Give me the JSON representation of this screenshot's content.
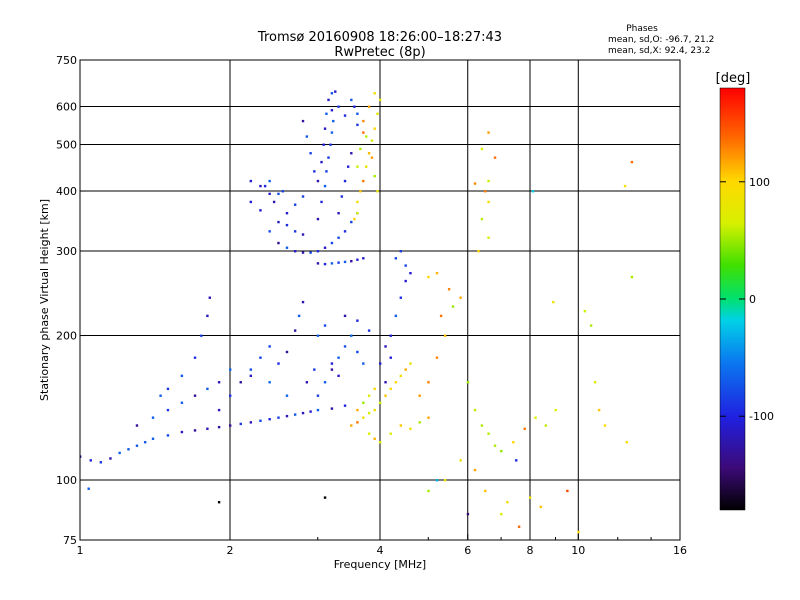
{
  "chart_data": {
    "type": "scatter",
    "title": "Tromsø 20160908 18:26:00–18:27:43",
    "subtitle": "RwPretec (8p)",
    "xlabel": "Frequency [MHz]",
    "ylabel": "Stationary phase Virtual Height [km]",
    "x_scale": "log",
    "y_scale": "log",
    "xlim": [
      1,
      16
    ],
    "ylim": [
      75,
      750
    ],
    "x_ticks": [
      1,
      2,
      4,
      6,
      8,
      10,
      16
    ],
    "x_tick_labels": [
      "1",
      "2",
      "4",
      "6",
      "8",
      "10",
      "16"
    ],
    "y_ticks": [
      75,
      100,
      200,
      300,
      400,
      500,
      600,
      750
    ],
    "y_tick_labels": [
      "75",
      "100",
      "200",
      "300",
      "400",
      "500",
      "600",
      "750"
    ],
    "x_gridlines": [
      2,
      4,
      6,
      8,
      10
    ],
    "y_gridlines": [
      100,
      200,
      300,
      400,
      500,
      600
    ],
    "grid": true,
    "colorbar": {
      "label": "[deg]",
      "range": [
        -180,
        180
      ],
      "tick_values": [
        100,
        0,
        -100
      ],
      "tick_labels": [
        "100",
        "0",
        "-100"
      ]
    },
    "phase_stats": {
      "title": "Phases",
      "line_o": "mean, sd,O: -96.7, 21.2",
      "line_x": "mean, sd,X:  92.4, 23.2"
    },
    "series": [
      {
        "trace": "F-region O-mode echoes (violet/blue)",
        "phase_mean": -96.7,
        "points": [
          [
            2.5,
            312
          ],
          [
            2.6,
            305
          ],
          [
            2.7,
            300
          ],
          [
            2.8,
            298
          ],
          [
            2.9,
            298
          ],
          [
            3.0,
            300
          ],
          [
            3.1,
            305
          ],
          [
            3.2,
            312
          ],
          [
            3.3,
            320
          ],
          [
            3.4,
            330
          ],
          [
            3.5,
            345
          ],
          [
            3.6,
            360
          ],
          [
            2.4,
            330
          ],
          [
            2.5,
            345
          ],
          [
            2.6,
            360
          ],
          [
            2.7,
            375
          ],
          [
            2.8,
            390
          ],
          [
            2.45,
            380
          ],
          [
            2.55,
            400
          ],
          [
            2.35,
            410
          ],
          [
            2.4,
            420
          ],
          [
            2.5,
            395
          ],
          [
            3.0,
            350
          ],
          [
            3.05,
            380
          ],
          [
            3.1,
            410
          ],
          [
            3.12,
            440
          ],
          [
            3.15,
            470
          ],
          [
            3.18,
            500
          ],
          [
            3.2,
            530
          ],
          [
            3.22,
            560
          ],
          [
            3.2,
            590
          ],
          [
            3.15,
            620
          ],
          [
            3.2,
            640
          ],
          [
            3.25,
            645
          ],
          [
            3.0,
            420
          ],
          [
            3.05,
            460
          ],
          [
            3.08,
            500
          ],
          [
            3.1,
            540
          ],
          [
            3.12,
            580
          ],
          [
            2.95,
            440
          ],
          [
            2.9,
            480
          ],
          [
            2.85,
            520
          ],
          [
            2.8,
            560
          ],
          [
            3.3,
            360
          ],
          [
            3.35,
            390
          ],
          [
            3.4,
            420
          ],
          [
            3.45,
            450
          ],
          [
            3.5,
            480
          ],
          [
            3.4,
            285
          ],
          [
            3.5,
            286
          ],
          [
            3.6,
            288
          ],
          [
            3.7,
            290
          ],
          [
            3.3,
            284
          ],
          [
            3.2,
            283
          ],
          [
            3.1,
            282
          ],
          [
            3.0,
            283
          ],
          [
            2.2,
            420
          ],
          [
            2.3,
            410
          ],
          [
            2.4,
            395
          ],
          [
            2.2,
            380
          ],
          [
            2.3,
            365
          ],
          [
            2.6,
            340
          ],
          [
            2.7,
            330
          ],
          [
            2.8,
            325
          ],
          [
            3.5,
            620
          ],
          [
            3.55,
            600
          ],
          [
            3.6,
            580
          ],
          [
            3.6,
            550
          ],
          [
            3.3,
            600
          ],
          [
            3.4,
            575
          ]
        ]
      },
      {
        "trace": "F-region X-mode echoes (yellow/green)",
        "phase_mean": 92.4,
        "points": [
          [
            3.6,
            380
          ],
          [
            3.65,
            400
          ],
          [
            3.7,
            420
          ],
          [
            3.75,
            450
          ],
          [
            3.8,
            480
          ],
          [
            3.85,
            510
          ],
          [
            3.9,
            540
          ],
          [
            3.95,
            580
          ],
          [
            4.0,
            620
          ],
          [
            3.9,
            640
          ],
          [
            3.8,
            600
          ],
          [
            3.7,
            560
          ],
          [
            3.75,
            520
          ],
          [
            3.85,
            470
          ],
          [
            3.9,
            430
          ],
          [
            3.95,
            400
          ],
          [
            3.6,
            450
          ],
          [
            3.65,
            490
          ],
          [
            3.7,
            530
          ],
          [
            3.6,
            360
          ],
          [
            3.55,
            350
          ]
        ]
      },
      {
        "trace": "E-region and sporadic echoes (violet/blue)",
        "phase_mean": -96.7,
        "points": [
          [
            1.0,
            112
          ],
          [
            1.05,
            110
          ],
          [
            1.1,
            109
          ],
          [
            1.15,
            111
          ],
          [
            1.2,
            114
          ],
          [
            1.25,
            116
          ],
          [
            1.3,
            118
          ],
          [
            1.35,
            120
          ],
          [
            1.4,
            122
          ],
          [
            1.5,
            124
          ],
          [
            1.6,
            126
          ],
          [
            1.7,
            127
          ],
          [
            1.8,
            128
          ],
          [
            1.9,
            129
          ],
          [
            2.0,
            130
          ],
          [
            2.1,
            131
          ],
          [
            2.2,
            132
          ],
          [
            2.3,
            133
          ],
          [
            2.4,
            134
          ],
          [
            2.5,
            135
          ],
          [
            2.6,
            136
          ],
          [
            2.7,
            137
          ],
          [
            2.8,
            138
          ],
          [
            2.9,
            139
          ],
          [
            3.0,
            140
          ],
          [
            3.2,
            141
          ],
          [
            3.4,
            143
          ],
          [
            1.3,
            130
          ],
          [
            1.4,
            135
          ],
          [
            1.5,
            140
          ],
          [
            1.6,
            145
          ],
          [
            1.7,
            150
          ],
          [
            1.8,
            155
          ],
          [
            1.9,
            160
          ],
          [
            2.0,
            170
          ],
          [
            1.7,
            180
          ],
          [
            1.75,
            200
          ],
          [
            1.8,
            220
          ],
          [
            1.82,
            240
          ],
          [
            1.9,
            140
          ],
          [
            2.0,
            150
          ],
          [
            2.1,
            160
          ],
          [
            2.2,
            170
          ],
          [
            2.3,
            180
          ],
          [
            2.4,
            190
          ],
          [
            2.5,
            175
          ],
          [
            2.6,
            185
          ],
          [
            2.7,
            205
          ],
          [
            2.75,
            220
          ],
          [
            2.8,
            235
          ],
          [
            3.0,
            150
          ],
          [
            3.1,
            160
          ],
          [
            3.2,
            170
          ],
          [
            3.3,
            180
          ],
          [
            3.4,
            190
          ],
          [
            3.5,
            200
          ],
          [
            3.0,
            200
          ],
          [
            3.1,
            210
          ],
          [
            3.2,
            175
          ],
          [
            3.3,
            165
          ],
          [
            3.6,
            185
          ],
          [
            3.7,
            175
          ],
          [
            4.0,
            175
          ],
          [
            4.1,
            190
          ],
          [
            4.2,
            200
          ],
          [
            4.3,
            220
          ],
          [
            4.4,
            240
          ],
          [
            4.5,
            260
          ],
          [
            4.4,
            300
          ],
          [
            4.5,
            280
          ],
          [
            4.6,
            270
          ],
          [
            4.3,
            290
          ],
          [
            4.2,
            180
          ],
          [
            4.1,
            160
          ],
          [
            2.2,
            165
          ],
          [
            2.4,
            160
          ],
          [
            2.6,
            150
          ],
          [
            1.5,
            155
          ],
          [
            1.6,
            165
          ],
          [
            1.45,
            150
          ],
          [
            2.85,
            160
          ],
          [
            2.95,
            170
          ],
          [
            3.4,
            220
          ],
          [
            3.6,
            215
          ],
          [
            3.8,
            205
          ]
        ]
      },
      {
        "trace": "E-region X-mode and scattered echoes (yellow/orange/green/red)",
        "phase_mean": 92.4,
        "points": [
          [
            3.5,
            130
          ],
          [
            3.6,
            132
          ],
          [
            3.7,
            135
          ],
          [
            3.8,
            138
          ],
          [
            3.9,
            140
          ],
          [
            4.0,
            145
          ],
          [
            4.1,
            150
          ],
          [
            4.2,
            155
          ],
          [
            4.3,
            160
          ],
          [
            4.4,
            165
          ],
          [
            4.5,
            170
          ],
          [
            4.6,
            175
          ],
          [
            3.6,
            140
          ],
          [
            3.7,
            145
          ],
          [
            3.8,
            150
          ],
          [
            3.9,
            155
          ],
          [
            3.8,
            125
          ],
          [
            3.9,
            122
          ],
          [
            4.0,
            120
          ],
          [
            4.2,
            125
          ],
          [
            4.4,
            130
          ],
          [
            4.6,
            128
          ],
          [
            4.8,
            132
          ],
          [
            5.0,
            135
          ],
          [
            4.8,
            150
          ],
          [
            5.0,
            160
          ],
          [
            5.2,
            180
          ],
          [
            5.4,
            200
          ],
          [
            5.3,
            220
          ],
          [
            5.6,
            230
          ],
          [
            5.8,
            240
          ],
          [
            5.0,
            265
          ],
          [
            5.2,
            270
          ],
          [
            5.5,
            250
          ],
          [
            6.0,
            160
          ],
          [
            6.2,
            140
          ],
          [
            6.4,
            130
          ],
          [
            6.6,
            125
          ],
          [
            6.8,
            118
          ],
          [
            7.0,
            115
          ],
          [
            7.4,
            120
          ],
          [
            7.8,
            128
          ],
          [
            8.2,
            135
          ],
          [
            8.6,
            130
          ],
          [
            9.0,
            140
          ],
          [
            6.5,
            95
          ],
          [
            7.0,
            85
          ],
          [
            7.2,
            90
          ],
          [
            7.6,
            80
          ],
          [
            8.0,
            92
          ],
          [
            8.4,
            88
          ],
          [
            6.2,
            105
          ],
          [
            5.8,
            110
          ],
          [
            5.4,
            100
          ],
          [
            5.0,
            95
          ],
          [
            6.4,
            490
          ],
          [
            6.6,
            530
          ],
          [
            6.8,
            470
          ],
          [
            6.6,
            420
          ],
          [
            6.5,
            400
          ],
          [
            6.6,
            380
          ],
          [
            6.4,
            350
          ],
          [
            6.6,
            320
          ],
          [
            6.3,
            300
          ],
          [
            10.3,
            225
          ],
          [
            10.6,
            210
          ],
          [
            10.8,
            160
          ],
          [
            11.0,
            140
          ],
          [
            11.3,
            130
          ],
          [
            12.4,
            410
          ],
          [
            12.8,
            460
          ],
          [
            12.8,
            265
          ],
          [
            8.9,
            235
          ]
        ]
      },
      {
        "trace": "Isolated echoes (colour varies)",
        "points": [
          [
            1.04,
            96
          ],
          [
            1.9,
            90
          ],
          [
            3.1,
            92
          ],
          [
            5.2,
            100
          ],
          [
            6.0,
            85
          ],
          [
            7.5,
            110
          ],
          [
            9.5,
            95
          ],
          [
            10.0,
            78
          ],
          [
            12.5,
            120
          ],
          [
            8.1,
            400
          ],
          [
            6.2,
            415
          ]
        ]
      }
    ]
  }
}
